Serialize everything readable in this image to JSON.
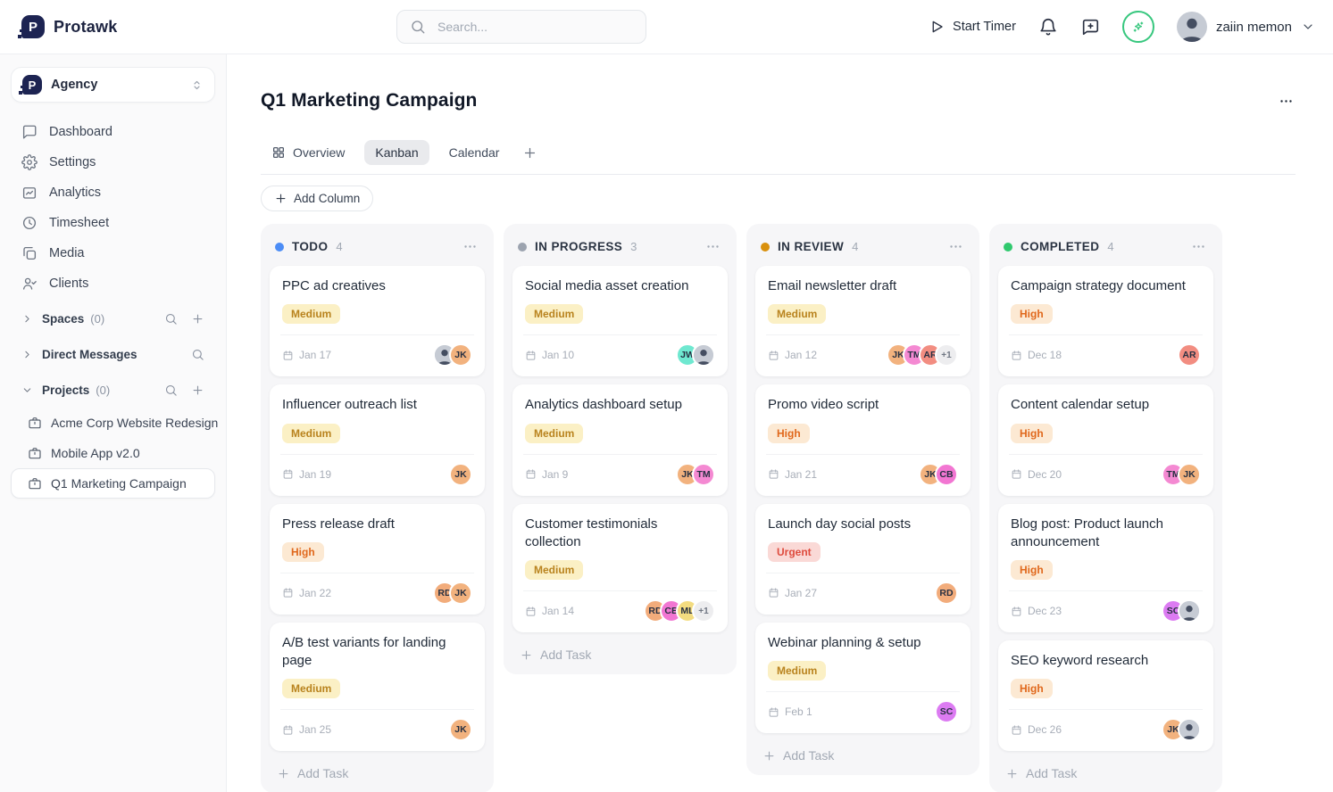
{
  "app": {
    "brand": "Protawk",
    "logo_letter": "P"
  },
  "topbar": {
    "search_placeholder": "Search...",
    "start_timer_label": "Start Timer",
    "user_name": "zaiin memon"
  },
  "sidebar": {
    "workspace_name": "Agency",
    "nav": [
      {
        "label": "Dashboard",
        "icon": "dashboard"
      },
      {
        "label": "Settings",
        "icon": "settings"
      },
      {
        "label": "Analytics",
        "icon": "analytics"
      },
      {
        "label": "Timesheet",
        "icon": "timesheet"
      },
      {
        "label": "Media",
        "icon": "media"
      },
      {
        "label": "Clients",
        "icon": "clients"
      }
    ],
    "sections": [
      {
        "label": "Spaces",
        "count": "(0)",
        "expanded": false,
        "actions": [
          "search",
          "add"
        ]
      },
      {
        "label": "Direct Messages",
        "count": "",
        "expanded": false,
        "actions": [
          "search"
        ]
      },
      {
        "label": "Projects",
        "count": "(0)",
        "expanded": true,
        "actions": [
          "search",
          "add"
        ]
      }
    ],
    "projects": [
      {
        "label": "Acme Corp Website Redesign",
        "active": false
      },
      {
        "label": "Mobile App v2.0",
        "active": false
      },
      {
        "label": "Q1 Marketing Campaign",
        "active": true
      }
    ]
  },
  "main": {
    "title": "Q1 Marketing Campaign",
    "tabs": [
      {
        "label": "Overview",
        "icon": "grid",
        "active": false
      },
      {
        "label": "Kanban",
        "active": true
      },
      {
        "label": "Calendar",
        "active": false
      }
    ],
    "add_column_label": "Add Column",
    "add_task_label": "Add Task"
  },
  "priorities": {
    "Medium": {
      "bg": "#FBF0C5",
      "fg": "#B9831E"
    },
    "High": {
      "bg": "#FCE9D3",
      "fg": "#E0681C"
    },
    "Urgent": {
      "bg": "#FAD9D6",
      "fg": "#DE4B3D"
    }
  },
  "members": {
    "JK": "#F2B27E",
    "RD": "#F2AC7B",
    "TM": "#F489D2",
    "JW": "#6FE8D0",
    "AR": "#F28D81",
    "CB": "#F276D2",
    "ML": "#F3DC80",
    "SC": "#DC7BF2"
  },
  "board": {
    "columns": [
      {
        "name": "TODO",
        "count": 4,
        "dot_color": "#4C8DF6",
        "cards": [
          {
            "title": "PPC ad creatives",
            "priority": "Medium",
            "due": "Jan 17",
            "assignees": [
              "photo",
              "JK"
            ]
          },
          {
            "title": "Influencer outreach list",
            "priority": "Medium",
            "due": "Jan 19",
            "assignees": [
              "JK"
            ]
          },
          {
            "title": "Press release draft",
            "priority": "High",
            "due": "Jan 22",
            "assignees": [
              "RD",
              "JK"
            ]
          },
          {
            "title": "A/B test variants for landing page",
            "priority": "Medium",
            "due": "Jan 25",
            "assignees": [
              "JK"
            ]
          }
        ]
      },
      {
        "name": "IN PROGRESS",
        "count": 3,
        "dot_color": "#9CA3AF",
        "cards": [
          {
            "title": "Social media asset creation",
            "priority": "Medium",
            "due": "Jan 10",
            "assignees": [
              "JW",
              "photo"
            ]
          },
          {
            "title": "Analytics dashboard setup",
            "priority": "Medium",
            "due": "Jan 9",
            "assignees": [
              "JK",
              "TM"
            ]
          },
          {
            "title": "Customer testimonials collection",
            "priority": "Medium",
            "due": "Jan 14",
            "assignees": [
              "RD",
              "CB",
              "ML",
              "+1"
            ]
          }
        ]
      },
      {
        "name": "IN REVIEW",
        "count": 4,
        "dot_color": "#D9900D",
        "cards": [
          {
            "title": "Email newsletter draft",
            "priority": "Medium",
            "due": "Jan 12",
            "assignees": [
              "JK",
              "TM",
              "AR",
              "+1"
            ]
          },
          {
            "title": "Promo video script",
            "priority": "High",
            "due": "Jan 21",
            "assignees": [
              "JK",
              "CB"
            ]
          },
          {
            "title": "Launch day social posts",
            "priority": "Urgent",
            "due": "Jan 27",
            "assignees": [
              "RD"
            ]
          },
          {
            "title": "Webinar planning & setup",
            "priority": "Medium",
            "due": "Feb 1",
            "assignees": [
              "SC"
            ]
          }
        ]
      },
      {
        "name": "COMPLETED",
        "count": 4,
        "dot_color": "#30C96E",
        "cards": [
          {
            "title": "Campaign strategy document",
            "priority": "High",
            "due": "Dec 18",
            "assignees": [
              "AR"
            ]
          },
          {
            "title": "Content calendar setup",
            "priority": "High",
            "due": "Dec 20",
            "assignees": [
              "TM",
              "JK"
            ]
          },
          {
            "title": "Blog post: Product launch announcement",
            "priority": "High",
            "due": "Dec 23",
            "assignees": [
              "SC",
              "photo"
            ]
          },
          {
            "title": "SEO keyword research",
            "priority": "High",
            "due": "Dec 26",
            "assignees": [
              "JK",
              "photo"
            ]
          }
        ]
      }
    ]
  }
}
